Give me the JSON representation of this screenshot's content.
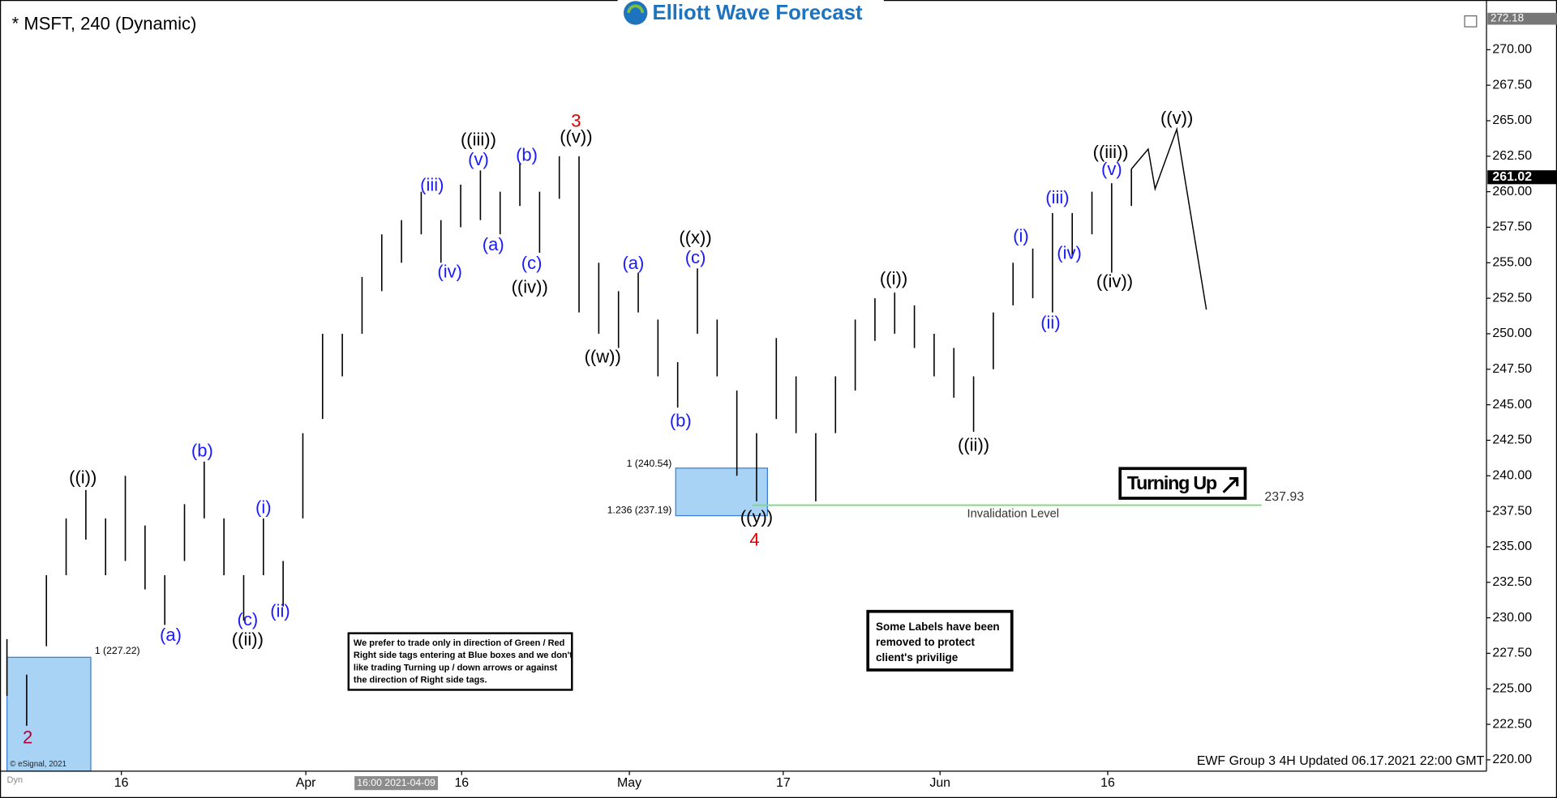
{
  "chart_data": {
    "type": "ohlc",
    "title": "* MSFT, 240 (Dynamic)",
    "logo": "Elliott Wave Forecast",
    "footer": "EWF Group 3 4H Updated 06.17.2021 22:00 GMT",
    "cursor_date": "16:00 2021-04-09",
    "copyright": "© eSignal, 2021",
    "corner_tag": "Dyn",
    "xlim": [
      0,
      150
    ],
    "ylim": [
      219.2,
      272.8
    ],
    "xticks": [
      {
        "value": 11.6,
        "label": "16"
      },
      {
        "value": 30.3,
        "label": "Apr"
      },
      {
        "value": 46.1,
        "label": "16"
      },
      {
        "value": 63.1,
        "label": "May"
      },
      {
        "value": 78.7,
        "label": "17"
      },
      {
        "value": 94.6,
        "label": "Jun"
      },
      {
        "value": 111.6,
        "label": "16"
      }
    ],
    "yticks": [
      {
        "value": 220,
        "label": "220.00"
      },
      {
        "value": 222.5,
        "label": "222.50"
      },
      {
        "value": 225,
        "label": "225.00"
      },
      {
        "value": 227.5,
        "label": "227.50"
      },
      {
        "value": 230,
        "label": "230.00"
      },
      {
        "value": 232.5,
        "label": "232.50"
      },
      {
        "value": 235,
        "label": "235.00"
      },
      {
        "value": 237.5,
        "label": "237.50"
      },
      {
        "value": 240,
        "label": "240.00"
      },
      {
        "value": 242.5,
        "label": "242.50"
      },
      {
        "value": 245,
        "label": "245.00"
      },
      {
        "value": 247.5,
        "label": "247.50"
      },
      {
        "value": 250,
        "label": "250.00"
      },
      {
        "value": 252.5,
        "label": "252.50"
      },
      {
        "value": 255,
        "label": "255.00"
      },
      {
        "value": 257.5,
        "label": "257.50"
      },
      {
        "value": 260,
        "label": "260.00"
      },
      {
        "value": 262.5,
        "label": "262.50"
      },
      {
        "value": 265,
        "label": "265.00"
      },
      {
        "value": 267.5,
        "label": "267.50"
      },
      {
        "value": 270,
        "label": "270.00"
      }
    ],
    "bar_color": "#000000",
    "x": [
      0,
      2,
      4,
      6,
      8,
      10,
      12,
      14,
      16,
      18,
      20,
      22,
      24,
      26,
      28,
      30,
      32,
      34,
      36,
      38,
      40,
      42,
      44,
      46,
      48,
      50,
      52,
      54,
      56,
      58,
      60,
      62,
      64,
      66,
      68,
      70,
      72,
      74,
      76,
      78,
      80,
      82,
      84,
      86,
      88,
      90,
      92,
      94,
      96,
      98,
      100,
      102,
      104,
      106,
      108,
      110,
      112,
      114
    ],
    "highs": [
      228.5,
      226,
      233,
      237,
      239,
      237,
      240,
      236.5,
      233,
      238,
      241,
      237,
      233,
      237,
      234,
      243,
      250,
      250,
      254,
      257,
      258,
      260,
      258,
      260.5,
      261.5,
      260,
      262,
      260,
      262.5,
      262.5,
      255,
      253,
      254.3,
      251,
      248,
      254.6,
      251,
      246,
      243,
      249.7,
      247,
      243,
      247,
      251,
      252.5,
      252.9,
      252,
      250,
      249,
      247,
      251.5,
      255,
      256,
      258.5,
      258.5,
      260,
      260.6,
      261.6
    ],
    "lows": [
      224.5,
      222.4,
      228,
      233,
      235.5,
      233,
      234,
      232,
      229.5,
      234,
      237,
      233,
      229.8,
      233,
      230.8,
      237,
      244,
      247,
      250,
      253,
      255,
      257,
      255,
      257.5,
      258,
      257,
      259,
      255.7,
      259.5,
      251.5,
      250,
      249,
      251.5,
      247,
      244.8,
      250,
      247,
      240,
      238.2,
      244,
      243,
      238.2,
      243,
      246,
      249.5,
      250,
      249,
      247,
      245.5,
      243.1,
      247.5,
      252,
      252.5,
      251.5,
      255.5,
      257,
      254.3,
      259
    ],
    "projection": {
      "color": "#000000",
      "x": [
        114,
        115.7,
        116.4,
        118.6,
        121.6
      ],
      "y": [
        261.6,
        263,
        260.2,
        264.4,
        251.7
      ]
    },
    "labels": [
      {
        "text": "2",
        "x": 2.1,
        "y": 221.5,
        "color": "#b0003a"
      },
      {
        "text": "((i))",
        "x": 7.7,
        "y": 239.8,
        "color": "#000000"
      },
      {
        "text": "(a)",
        "x": 16.6,
        "y": 228.7,
        "color": "#1a1aff"
      },
      {
        "text": "(b)",
        "x": 19.8,
        "y": 241.7,
        "color": "#1a1aff"
      },
      {
        "text": "(c)",
        "x": 24.4,
        "y": 229.8,
        "color": "#1a1aff"
      },
      {
        "text": "((ii))",
        "x": 24.4,
        "y": 228.4,
        "color": "#000000"
      },
      {
        "text": "(i)",
        "x": 26,
        "y": 237.7,
        "color": "#1a1aff"
      },
      {
        "text": "(ii)",
        "x": 27.7,
        "y": 230.4,
        "color": "#1a1aff"
      },
      {
        "text": "(iii)",
        "x": 43.1,
        "y": 260.4,
        "color": "#1a1aff"
      },
      {
        "text": "(iv)",
        "x": 44.9,
        "y": 254.3,
        "color": "#1a1aff"
      },
      {
        "text": "(v)",
        "x": 47.8,
        "y": 262.2,
        "color": "#1a1aff"
      },
      {
        "text": "((iii))",
        "x": 47.8,
        "y": 263.6,
        "color": "#000000"
      },
      {
        "text": "(a)",
        "x": 49.3,
        "y": 256.2,
        "color": "#1a1aff"
      },
      {
        "text": "(b)",
        "x": 52.7,
        "y": 262.5,
        "color": "#1a1aff"
      },
      {
        "text": "(c)",
        "x": 53.2,
        "y": 254.9,
        "color": "#1a1aff"
      },
      {
        "text": "((iv))",
        "x": 53,
        "y": 253.2,
        "color": "#000000"
      },
      {
        "text": "3",
        "x": 57.7,
        "y": 264.9,
        "color": "#e00000"
      },
      {
        "text": "((v))",
        "x": 57.7,
        "y": 263.8,
        "color": "#000000"
      },
      {
        "text": "((w))",
        "x": 60.4,
        "y": 248.3,
        "color": "#000000"
      },
      {
        "text": "(a)",
        "x": 63.5,
        "y": 254.9,
        "color": "#1a1aff"
      },
      {
        "text": "(b)",
        "x": 68.3,
        "y": 243.8,
        "color": "#1a1aff"
      },
      {
        "text": "((x))",
        "x": 69.8,
        "y": 256.7,
        "color": "#000000"
      },
      {
        "text": "(c)",
        "x": 69.8,
        "y": 255.3,
        "color": "#1a1aff"
      },
      {
        "text": "((y))",
        "x": 76,
        "y": 237,
        "color": "#000000"
      },
      {
        "text": "4",
        "x": 75.8,
        "y": 235.4,
        "color": "#e00000"
      },
      {
        "text": "((i))",
        "x": 89.9,
        "y": 253.8,
        "color": "#000000"
      },
      {
        "text": "((ii))",
        "x": 98,
        "y": 242.1,
        "color": "#000000"
      },
      {
        "text": "(i)",
        "x": 102.8,
        "y": 256.8,
        "color": "#1a1aff"
      },
      {
        "text": "(ii)",
        "x": 105.8,
        "y": 250.7,
        "color": "#1a1aff"
      },
      {
        "text": "(iii)",
        "x": 106.5,
        "y": 259.5,
        "color": "#1a1aff"
      },
      {
        "text": "(iv)",
        "x": 107.7,
        "y": 255.6,
        "color": "#1a1aff"
      },
      {
        "text": "(v)",
        "x": 112,
        "y": 261.5,
        "color": "#1a1aff"
      },
      {
        "text": "((iii))",
        "x": 111.9,
        "y": 262.7,
        "color": "#000000"
      },
      {
        "text": "((iv))",
        "x": 112.3,
        "y": 253.6,
        "color": "#000000"
      },
      {
        "text": "((v))",
        "x": 118.6,
        "y": 265.1,
        "color": "#000000"
      }
    ],
    "boxes": [
      {
        "x": [
          67.8,
          77.1
        ],
        "top": 240.54,
        "bottom": 237.19,
        "top_label": "1 (240.54)",
        "bottom_label": "1.236 (237.19)",
        "color": "#a9d3f5"
      },
      {
        "x": [
          0,
          8.5
        ],
        "top": 227.22,
        "top_label": "1 (227.22)",
        "color": "#a9d3f5"
      }
    ],
    "invalidation": {
      "value": 237.93,
      "x": [
        75.6,
        127.2
      ],
      "label": "Invalidation Level",
      "color": "#7fd97f"
    },
    "last_price": 261.02,
    "top_price": 272.18,
    "turning_label": "Turning Up",
    "note_left": [
      "We prefer to trade only in direction of Green / Red",
      "Right side tags entering at Blue boxes and we don't",
      "like trading Turning up / down arrows or against",
      "the direction of Right side tags."
    ],
    "note_right": [
      "Some Labels have been",
      "removed to protect",
      "client's privilige"
    ]
  }
}
